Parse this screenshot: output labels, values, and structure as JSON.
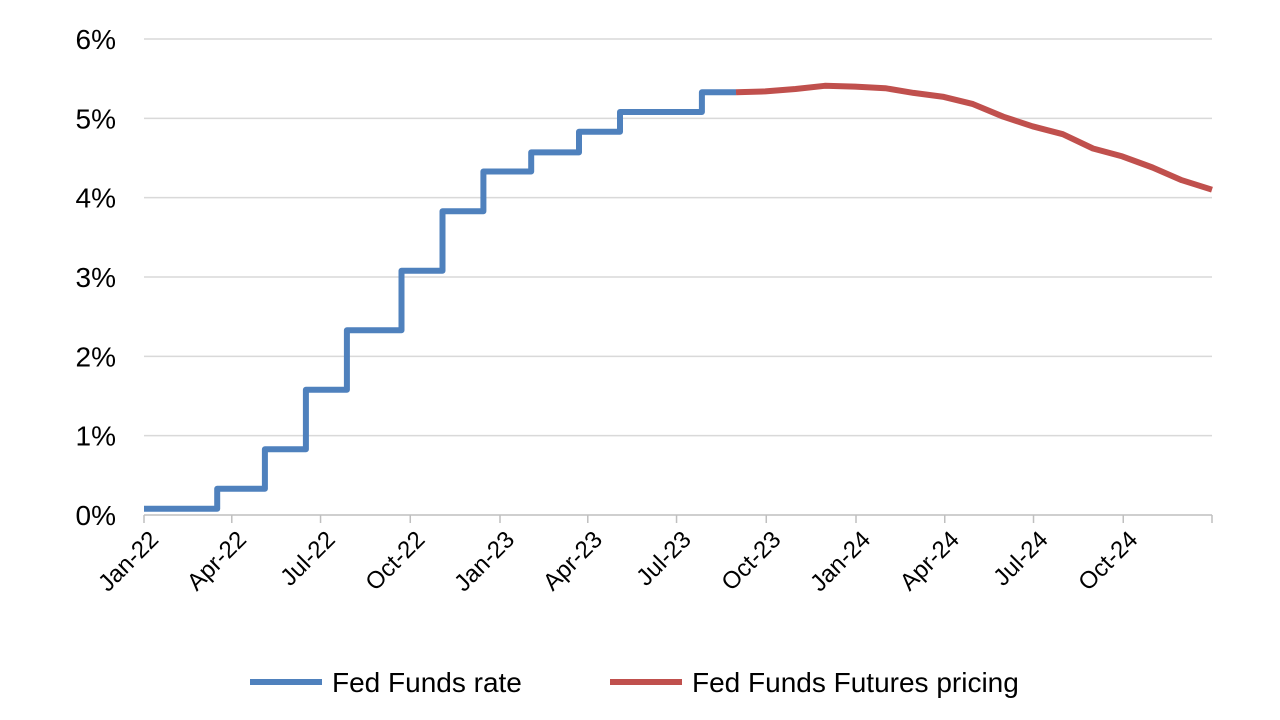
{
  "chart_data": {
    "type": "line",
    "title": "",
    "xlabel": "",
    "ylabel": "",
    "ylim": [
      0,
      6
    ],
    "yticks": [
      "0%",
      "1%",
      "2%",
      "3%",
      "4%",
      "5%",
      "6%"
    ],
    "xticks": [
      "Jan-22",
      "Apr-22",
      "Jul-22",
      "Oct-22",
      "Jan-23",
      "Apr-23",
      "Jul-23",
      "Oct-23",
      "Jan-24",
      "Apr-24",
      "Jul-24",
      "Oct-24"
    ],
    "xrange": [
      "2022-01-01",
      "2024-12-31"
    ],
    "grid": true,
    "legend_position": "bottom",
    "series": [
      {
        "name": "Fed Funds rate",
        "color": "#4f81bd",
        "style": "step",
        "points": [
          [
            "2022-01-01",
            0.08
          ],
          [
            "2022-03-17",
            0.33
          ],
          [
            "2022-05-05",
            0.83
          ],
          [
            "2022-06-16",
            1.58
          ],
          [
            "2022-07-28",
            2.33
          ],
          [
            "2022-09-22",
            3.08
          ],
          [
            "2022-11-03",
            3.83
          ],
          [
            "2022-12-15",
            4.33
          ],
          [
            "2023-02-02",
            4.57
          ],
          [
            "2023-03-23",
            4.83
          ],
          [
            "2023-05-04",
            5.08
          ],
          [
            "2023-07-27",
            5.33
          ],
          [
            "2023-08-31",
            5.33
          ]
        ]
      },
      {
        "name": "Fed Funds Futures pricing",
        "color": "#c0504d",
        "style": "line",
        "points": [
          [
            "2023-08-31",
            5.33
          ],
          [
            "2023-09-30",
            5.34
          ],
          [
            "2023-10-31",
            5.37
          ],
          [
            "2023-11-30",
            5.41
          ],
          [
            "2023-12-31",
            5.4
          ],
          [
            "2024-01-31",
            5.38
          ],
          [
            "2024-02-29",
            5.32
          ],
          [
            "2024-03-31",
            5.27
          ],
          [
            "2024-04-30",
            5.18
          ],
          [
            "2024-05-31",
            5.02
          ],
          [
            "2024-06-30",
            4.9
          ],
          [
            "2024-07-31",
            4.8
          ],
          [
            "2024-08-31",
            4.62
          ],
          [
            "2024-09-30",
            4.52
          ],
          [
            "2024-10-31",
            4.38
          ],
          [
            "2024-11-30",
            4.22
          ],
          [
            "2024-12-31",
            4.1
          ]
        ]
      }
    ]
  }
}
